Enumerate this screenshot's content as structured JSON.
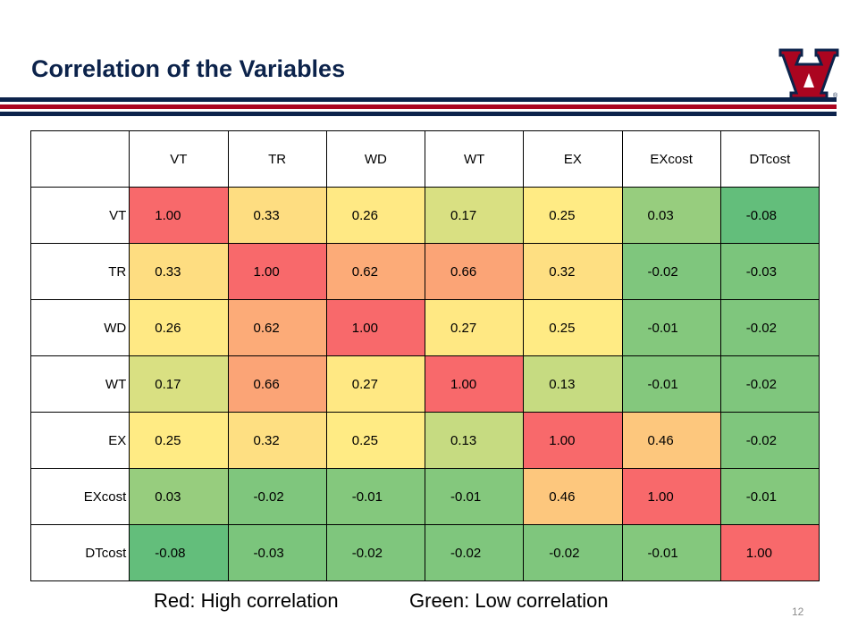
{
  "slide": {
    "title": "Correlation of the Variables",
    "page_number": "12"
  },
  "legend": {
    "red_label": "Red: High correlation",
    "green_label": "Green: Low correlation"
  },
  "colors": {
    "navy": "#0c234b",
    "red": "#ab0520"
  },
  "logo": {
    "icon": "university-a-logo-icon",
    "mark": "®"
  },
  "chart_data": {
    "type": "heatmap",
    "title": "Correlation of the Variables",
    "columns": [
      "VT",
      "TR",
      "WD",
      "WT",
      "EX",
      "EXcost",
      "DTcost"
    ],
    "rows": [
      "VT",
      "TR",
      "WD",
      "WT",
      "EX",
      "EXcost",
      "DTcost"
    ],
    "values": [
      [
        1.0,
        0.33,
        0.26,
        0.17,
        0.25,
        0.03,
        -0.08
      ],
      [
        0.33,
        1.0,
        0.62,
        0.66,
        0.32,
        -0.02,
        -0.03
      ],
      [
        0.26,
        0.62,
        1.0,
        0.27,
        0.25,
        -0.01,
        -0.02
      ],
      [
        0.17,
        0.66,
        0.27,
        1.0,
        0.13,
        -0.01,
        -0.02
      ],
      [
        0.25,
        0.32,
        0.25,
        0.13,
        1.0,
        0.46,
        -0.02
      ],
      [
        0.03,
        -0.02,
        -0.01,
        -0.01,
        0.46,
        1.0,
        -0.01
      ],
      [
        -0.08,
        -0.03,
        -0.02,
        -0.02,
        -0.02,
        -0.01,
        1.0
      ]
    ],
    "color_scale": {
      "high": "#f8696b",
      "mid": "#ffeb84",
      "low": "#63be7b"
    }
  }
}
